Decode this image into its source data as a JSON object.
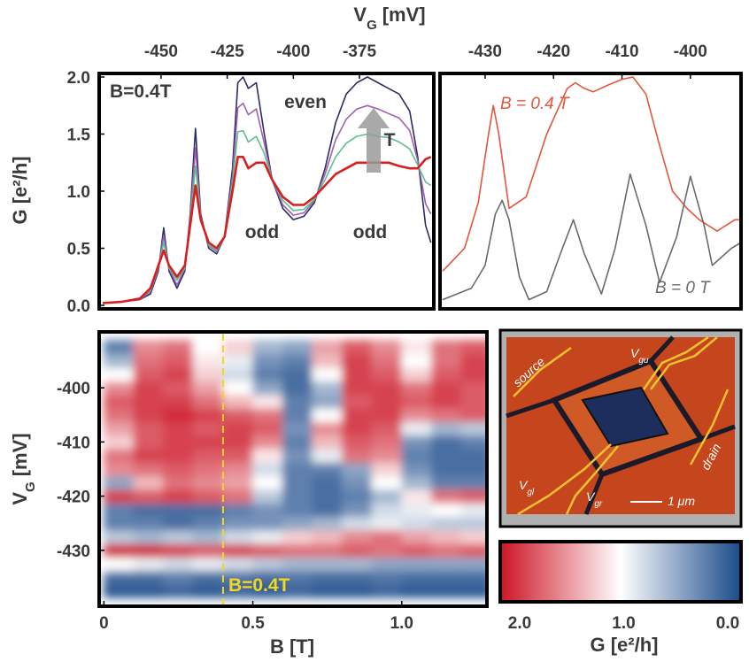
{
  "chart_data": [
    {
      "type": "line",
      "xlabel": {
        "main": "V",
        "sub": "G",
        "rest": "[mV]"
      },
      "ylabel": "G [e²/h]",
      "xlim": [
        -473.4,
        -346.9
      ],
      "ylim": [
        0,
        2
      ],
      "xticks": [
        -450,
        -425,
        -400,
        -375
      ],
      "yticks": [
        {
          "value": 0,
          "label": "0.0"
        },
        {
          "value": 0.5,
          "label": "0.5"
        },
        {
          "value": 1,
          "label": "1.0"
        },
        {
          "value": 1.5,
          "label": "1.5"
        },
        {
          "value": 2,
          "label": "2.0"
        }
      ],
      "annotations": [
        "B=0.4T",
        "even",
        "odd",
        "odd",
        "T"
      ],
      "x": [
        -472,
        -465,
        -458,
        -454,
        -451,
        -449,
        -447,
        -444,
        -441,
        -439,
        -437,
        -435,
        -432,
        -429,
        -426,
        -423,
        -421,
        -419,
        -417,
        -414,
        -411,
        -408,
        -404,
        -400,
        -396,
        -392,
        -388,
        -384,
        -380,
        -376,
        -372,
        -368,
        -364,
        -360,
        -356,
        -353,
        -350,
        -348
      ],
      "series": [
        {
          "color": "#2a2c6c",
          "values": [
            0.02,
            0.03,
            0.05,
            0.1,
            0.3,
            0.68,
            0.3,
            0.15,
            0.3,
            0.8,
            1.55,
            0.8,
            0.5,
            0.45,
            0.6,
            1.2,
            1.95,
            2.0,
            1.9,
            1.95,
            1.5,
            1.1,
            0.85,
            0.75,
            0.78,
            0.9,
            1.2,
            1.6,
            1.85,
            1.95,
            2.0,
            1.95,
            1.9,
            1.85,
            1.7,
            1.3,
            0.7,
            0.55
          ]
        },
        {
          "color": "#a060b0",
          "values": [
            0.02,
            0.03,
            0.05,
            0.12,
            0.32,
            0.61,
            0.32,
            0.18,
            0.32,
            0.77,
            1.38,
            0.78,
            0.52,
            0.47,
            0.6,
            1.13,
            1.73,
            1.77,
            1.67,
            1.72,
            1.42,
            1.1,
            0.88,
            0.79,
            0.81,
            0.92,
            1.15,
            1.45,
            1.63,
            1.72,
            1.75,
            1.72,
            1.68,
            1.64,
            1.53,
            1.27,
            0.89,
            0.8
          ]
        },
        {
          "color": "#5cbf8c",
          "values": [
            0.02,
            0.03,
            0.06,
            0.13,
            0.33,
            0.55,
            0.33,
            0.22,
            0.33,
            0.73,
            1.22,
            0.77,
            0.53,
            0.48,
            0.6,
            1.07,
            1.52,
            1.53,
            1.43,
            1.48,
            1.33,
            1.1,
            0.92,
            0.83,
            0.84,
            0.93,
            1.1,
            1.3,
            1.42,
            1.48,
            1.5,
            1.48,
            1.47,
            1.43,
            1.37,
            1.23,
            1.08,
            1.05
          ]
        },
        {
          "color": "#d81e1e",
          "values": [
            0.02,
            0.03,
            0.06,
            0.15,
            0.35,
            0.48,
            0.35,
            0.25,
            0.35,
            0.7,
            1.05,
            0.75,
            0.55,
            0.5,
            0.6,
            1.0,
            1.3,
            1.3,
            1.2,
            1.25,
            1.25,
            1.1,
            0.95,
            0.88,
            0.88,
            0.95,
            1.05,
            1.15,
            1.2,
            1.25,
            1.25,
            1.25,
            1.25,
            1.22,
            1.2,
            1.2,
            1.28,
            1.3
          ]
        }
      ]
    },
    {
      "type": "line",
      "xlim": [
        -436.2,
        -392.6
      ],
      "ylim": [
        0,
        2
      ],
      "xticks": [
        -430,
        -420,
        -410,
        -400
      ],
      "series": [
        {
          "name": "B = 0.4 T",
          "color": "#e2563c",
          "x": [
            -436.2,
            -433,
            -431,
            -429.5,
            -428.8,
            -428,
            -426.5,
            -424,
            -421,
            -418,
            -416.8,
            -415.5,
            -414.2,
            -412,
            -410,
            -408.4,
            -406.5,
            -404.5,
            -402.6,
            -400.5,
            -398.7,
            -396.1,
            -393.5,
            -392.6
          ],
          "values": [
            0.3,
            0.5,
            0.9,
            1.5,
            1.75,
            1.5,
            0.85,
            0.95,
            1.5,
            1.9,
            1.95,
            1.9,
            1.87,
            1.93,
            1.98,
            2.0,
            1.85,
            1.4,
            1.0,
            0.85,
            0.75,
            0.65,
            0.75,
            0.75
          ]
        },
        {
          "name": "B = 0 T",
          "color": "#6a6a6a",
          "x": [
            -436.2,
            -432,
            -430,
            -428.5,
            -427.5,
            -426.5,
            -425,
            -423.6,
            -421,
            -419,
            -417.1,
            -415.5,
            -413,
            -411,
            -408.8,
            -406.5,
            -404.5,
            -402,
            -400,
            -398,
            -396.8,
            -394,
            -392.6
          ],
          "values": [
            0.05,
            0.15,
            0.35,
            0.8,
            0.92,
            0.75,
            0.25,
            0.05,
            0.12,
            0.45,
            0.75,
            0.45,
            0.1,
            0.5,
            1.15,
            0.7,
            0.2,
            0.6,
            1.13,
            0.7,
            0.35,
            0.5,
            0.55
          ]
        }
      ]
    },
    {
      "type": "heatmap",
      "xlabel": "B [T]",
      "ylabel": {
        "main": "V",
        "sub": "G",
        "rest": "[mV]"
      },
      "xlim": [
        -0.01,
        1.28
      ],
      "ylim": [
        -440,
        -390
      ],
      "xticks": [
        0,
        0.5,
        {
          "value": 1,
          "label": "1.0"
        }
      ],
      "yticks": [
        -400,
        -410,
        -420,
        -430
      ],
      "x": [
        0.05,
        0.15,
        0.25,
        0.35,
        0.45,
        0.55,
        0.65,
        0.75,
        0.85,
        0.95,
        1.05,
        1.15,
        1.25
      ],
      "y": [
        -437.5,
        -435,
        -432.5,
        -430,
        -427.5,
        -425,
        -422.5,
        -420,
        -417.5,
        -415,
        -412.5,
        -410,
        -407.5,
        -405,
        -402.5,
        -400,
        -397.5,
        -395,
        -392.5
      ],
      "z": [
        [
          0.1,
          0.1,
          0.15,
          0.1,
          0.15,
          0.1,
          0.15,
          0.1,
          0.1,
          0.15,
          0.1,
          0.1,
          0.1
        ],
        [
          0.2,
          0.2,
          0.3,
          0.2,
          0.25,
          0.2,
          0.25,
          0.2,
          0.2,
          0.25,
          0.2,
          0.2,
          0.2
        ],
        [
          1.0,
          0.9,
          0.8,
          0.9,
          0.8,
          0.7,
          0.6,
          0.6,
          0.6,
          0.5,
          0.5,
          0.5,
          0.5
        ],
        [
          1.9,
          1.9,
          1.8,
          1.7,
          1.8,
          1.7,
          1.6,
          1.6,
          1.7,
          1.6,
          1.7,
          1.6,
          1.7
        ],
        [
          0.7,
          0.6,
          0.7,
          0.6,
          0.8,
          0.9,
          1.2,
          1.3,
          1.5,
          1.6,
          1.4,
          1.3,
          1.2
        ],
        [
          0.3,
          0.3,
          0.2,
          0.3,
          0.4,
          0.4,
          0.5,
          0.6,
          0.8,
          0.9,
          0.8,
          0.7,
          0.7
        ],
        [
          0.3,
          0.2,
          0.2,
          0.2,
          0.3,
          0.4,
          0.3,
          0.2,
          0.4,
          0.8,
          0.9,
          1.0,
          0.9
        ],
        [
          1.8,
          1.7,
          1.8,
          1.7,
          1.6,
          0.7,
          0.3,
          0.2,
          0.3,
          0.6,
          1.1,
          1.6,
          1.7
        ],
        [
          0.5,
          1.3,
          1.6,
          1.5,
          1.4,
          1.0,
          0.3,
          0.2,
          0.4,
          1.0,
          0.6,
          0.3,
          0.3
        ],
        [
          1.5,
          1.6,
          1.7,
          1.6,
          1.5,
          0.8,
          0.3,
          0.3,
          0.5,
          1.2,
          0.4,
          0.2,
          0.2
        ],
        [
          1.6,
          1.8,
          1.8,
          1.7,
          1.7,
          1.1,
          0.4,
          0.9,
          1.6,
          1.5,
          0.3,
          0.2,
          0.2
        ],
        [
          1.2,
          1.7,
          1.8,
          1.8,
          1.8,
          1.5,
          0.3,
          1.3,
          1.7,
          1.6,
          0.4,
          0.2,
          0.3
        ],
        [
          1.4,
          1.7,
          1.8,
          1.7,
          1.8,
          1.7,
          0.4,
          1.5,
          1.8,
          1.7,
          0.9,
          0.6,
          0.7
        ],
        [
          1.6,
          1.8,
          1.9,
          1.8,
          1.7,
          1.6,
          0.3,
          1.0,
          1.8,
          1.8,
          1.5,
          1.6,
          1.7
        ],
        [
          1.7,
          1.8,
          1.8,
          1.6,
          1.3,
          1.1,
          0.3,
          0.5,
          1.7,
          1.8,
          1.7,
          1.8,
          1.7
        ],
        [
          1.5,
          1.8,
          1.7,
          1.4,
          1.0,
          0.5,
          0.2,
          0.6,
          1.8,
          1.8,
          1.6,
          1.8,
          1.7
        ],
        [
          1.0,
          1.7,
          1.8,
          1.2,
          0.8,
          0.3,
          0.2,
          1.0,
          1.8,
          1.7,
          1.2,
          1.7,
          1.8
        ],
        [
          0.6,
          1.6,
          1.7,
          1.1,
          0.9,
          0.4,
          0.3,
          1.3,
          1.8,
          1.6,
          1.0,
          1.6,
          1.8
        ],
        [
          0.3,
          1.5,
          1.6,
          1.0,
          1.2,
          0.6,
          0.5,
          1.4,
          1.7,
          1.5,
          1.1,
          1.6,
          1.7
        ]
      ],
      "clim": [
        0,
        2
      ],
      "colormap": [
        "#1a4a8a",
        "#ffffff",
        "#cc1424"
      ],
      "colorbar": {
        "label": "G [e²/h]",
        "ticks": [
          {
            "value": 2,
            "label": "2.0"
          },
          {
            "value": 1,
            "label": "1.0"
          },
          {
            "value": 0,
            "label": "0.0"
          }
        ]
      },
      "marker": {
        "x": 0.4,
        "label": "B=0.4T",
        "color": "#f2d81c"
      }
    }
  ],
  "micrograph": {
    "source": "source",
    "vgu": {
      "main": "V",
      "sub": "gu"
    },
    "drain": "drain",
    "vgl": {
      "main": "V",
      "sub": "gl"
    },
    "vgr": {
      "main": "V",
      "sub": "gr"
    },
    "scale": "1 μm"
  }
}
